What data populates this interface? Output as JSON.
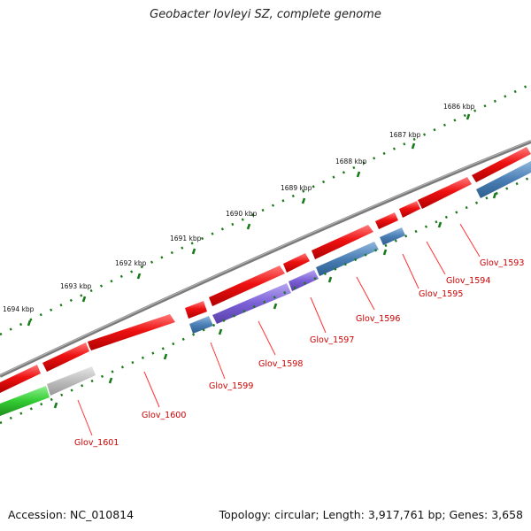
{
  "title": "Geobacter lovleyi SZ, complete genome",
  "footer": {
    "accession": "Accession: NC_010814",
    "summary": "Topology: circular; Length: 3,917,761 bp; Genes: 3,658"
  },
  "colors": {
    "backbone": "#7a7a7a",
    "cds": "#ee1111",
    "gene": "#4a7fb5",
    "rna": "#7b5fd6",
    "highlight_green": "#33cc33",
    "pseudo": "#bdbdbd",
    "tick": "#1a7a1a",
    "label": "#cc0000"
  },
  "tick_labels": [
    "1686 kbp",
    "1687 kbp",
    "1688 kbp",
    "1689 kbp",
    "1690 kbp",
    "1691 kbp",
    "1692 kbp",
    "1693 kbp",
    "1694 kbp"
  ],
  "gene_labels": [
    "Glov_1593",
    "Glov_1594",
    "Glov_1595",
    "Glov_1596",
    "Glov_1597",
    "Glov_1598",
    "Glov_1599",
    "Glov_1600",
    "Glov_1601"
  ]
}
